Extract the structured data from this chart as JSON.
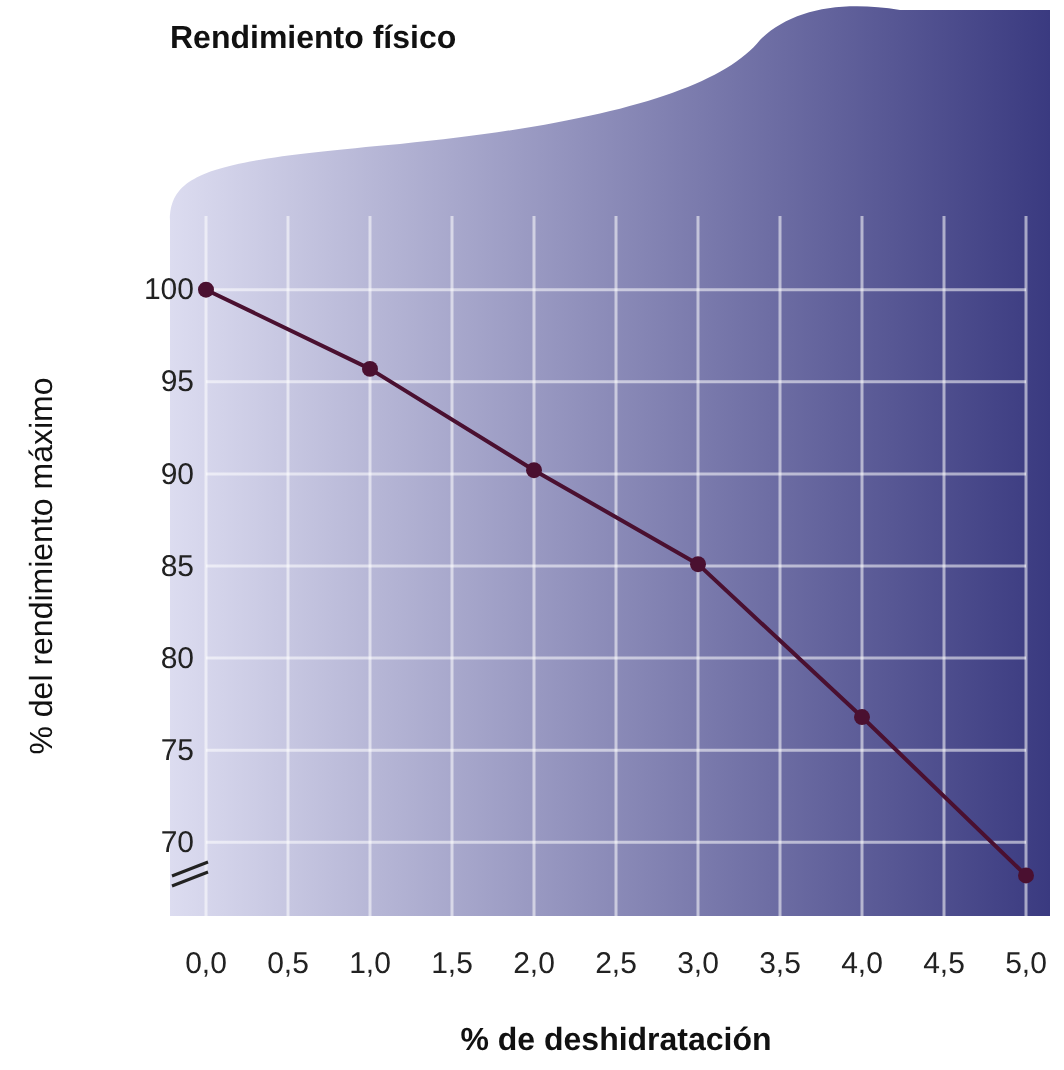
{
  "chart_data": {
    "type": "line",
    "title": "Rendimiento físico",
    "xlabel": "% de deshidratación",
    "ylabel": "% del rendimiento máximo",
    "x": [
      0,
      1,
      2,
      3,
      4,
      5
    ],
    "series": [
      {
        "color": "#4a1030",
        "values": [
          100,
          95.7,
          90.2,
          85.1,
          76.8,
          68.2
        ]
      }
    ],
    "xlim": [
      0,
      5
    ],
    "xticks": [
      {
        "value": 0,
        "label": "0,0"
      },
      {
        "value": 0.5,
        "label": "0,5"
      },
      {
        "value": 1,
        "label": "1,0"
      },
      {
        "value": 1.5,
        "label": "1,5"
      },
      {
        "value": 2,
        "label": "2,0"
      },
      {
        "value": 2.5,
        "label": "2,5"
      },
      {
        "value": 3,
        "label": "3,0"
      },
      {
        "value": 3.5,
        "label": "3,5"
      },
      {
        "value": 4,
        "label": "4,0"
      },
      {
        "value": 4.5,
        "label": "4,5"
      },
      {
        "value": 5,
        "label": "5,0"
      }
    ],
    "ylim": [
      66,
      104
    ],
    "yticks": [
      70,
      75,
      80,
      85,
      90,
      95,
      100
    ],
    "grid": true,
    "marker": "circle",
    "line_style": "solid"
  }
}
